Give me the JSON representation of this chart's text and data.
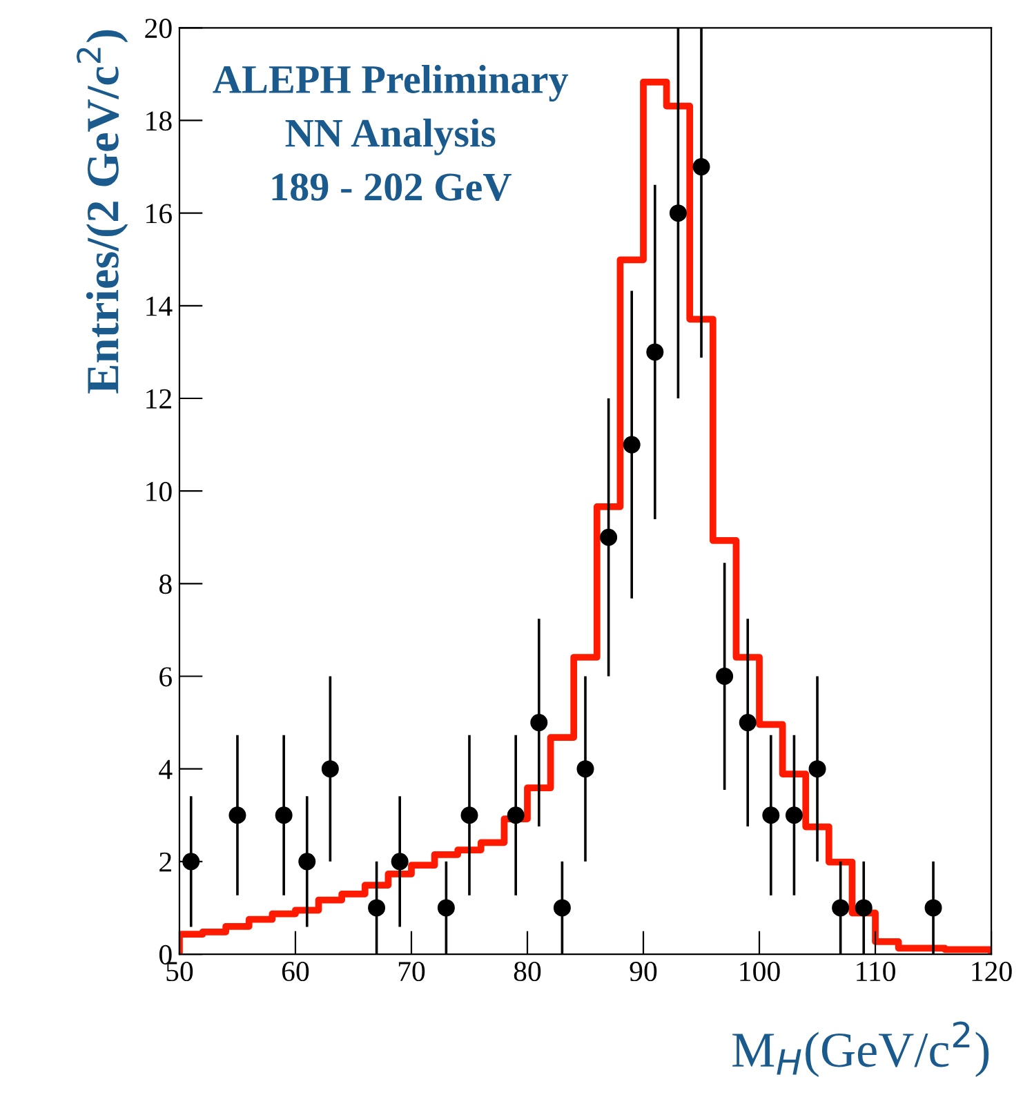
{
  "chart_data": {
    "type": "scatter",
    "xlabel": "M$_{H}$(GeV/c$^{2}$)",
    "ylabel": "Entries/(2 GeV/c$^{2}$)",
    "annotations": [
      "ALEPH Preliminary",
      "NN Analysis",
      "189 - 202 GeV"
    ],
    "xlim": [
      50,
      120
    ],
    "xticks": [
      50,
      60,
      70,
      80,
      90,
      100,
      110,
      120
    ],
    "ylim": [
      0,
      20
    ],
    "yticks": [
      0,
      2,
      4,
      6,
      8,
      10,
      12,
      14,
      16,
      18,
      20
    ],
    "grid": false,
    "legend": false,
    "series": [
      {
        "type": "histogram",
        "color": "#ff1a00",
        "bins": [
          50,
          52,
          54,
          56,
          58,
          60,
          62,
          64,
          66,
          68,
          70,
          72,
          74,
          76,
          78,
          80,
          82,
          84,
          86,
          88,
          90,
          92,
          94,
          96,
          98,
          100,
          102,
          104,
          106,
          108,
          110,
          112,
          114,
          116,
          118,
          120
        ],
        "values": [
          0.43,
          0.48,
          0.6,
          0.75,
          0.87,
          0.95,
          1.17,
          1.3,
          1.49,
          1.73,
          1.92,
          2.15,
          2.25,
          2.41,
          2.92,
          3.59,
          4.68,
          6.41,
          9.66,
          14.99,
          18.83,
          18.31,
          13.71,
          8.93,
          6.41,
          4.96,
          3.89,
          2.75,
          1.99,
          0.89,
          0.27,
          0.13,
          0.13,
          0.1,
          0.1
        ]
      },
      {
        "color": "#000000",
        "marker": "circle",
        "x": [
          51,
          55,
          59,
          61,
          63,
          67,
          69,
          73,
          75,
          79,
          81,
          83,
          85,
          87,
          89,
          91,
          93,
          95,
          97,
          99,
          101,
          103,
          105,
          107,
          109,
          115
        ],
        "values": [
          2,
          3,
          3,
          2,
          4,
          1,
          2,
          1,
          3,
          3,
          5,
          1,
          4,
          9,
          11,
          13,
          16,
          17,
          6,
          5,
          3,
          3,
          4,
          1,
          1,
          1
        ],
        "errors": [
          1.41,
          1.73,
          1.73,
          1.41,
          2,
          1,
          1.41,
          1,
          1.73,
          1.73,
          2.24,
          1,
          2,
          3,
          3.32,
          3.61,
          4,
          [
            12.88,
            20
          ],
          2.45,
          2.24,
          1.73,
          1.73,
          2,
          1,
          1,
          1
        ]
      }
    ]
  }
}
